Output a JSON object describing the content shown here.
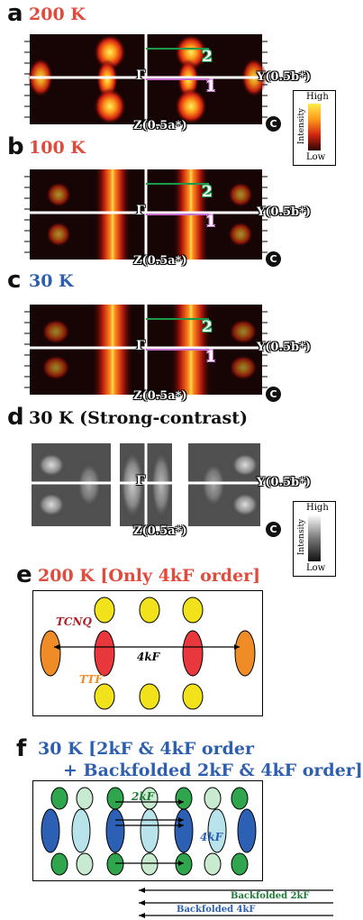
{
  "panels": [
    {
      "letter": "a",
      "title": "200 K",
      "color": "#e04b3c"
    },
    {
      "letter": "b",
      "title": "100 K",
      "color": "#e04b3c"
    },
    {
      "letter": "c",
      "title": "30 K",
      "color": "#2e5fae"
    },
    {
      "letter": "d",
      "title": "30 K (Strong-contrast)",
      "color": "#111111"
    },
    {
      "letter": "e",
      "title": "200 K [Only 4kF order]",
      "color": "#e04b3c"
    },
    {
      "letter": "f",
      "title": "30 K [2kF & 4kF order",
      "title2": "+ Backfolded 2kF & 4kF order]",
      "color": "#2e5fae"
    }
  ],
  "axis": {
    "gamma": "Γ",
    "y": "Y(0.5b*)",
    "z": "Z(0.5a*)",
    "corner": "C",
    "cut1": "1",
    "cut2": "2"
  },
  "colorbar": {
    "high": "High",
    "low": "Low",
    "label": "Intensity"
  },
  "diagram_e": {
    "tcnq": "TCNQ",
    "ttf": "TTF",
    "vec": "4kF"
  },
  "diagram_f": {
    "v2": "2kF",
    "v4": "4kF",
    "bf2": "Backfolded 2kF",
    "bf4": "Backfolded 4kF"
  },
  "colors": {
    "tcnq": "#e8383d",
    "ttf": "#f2e21c",
    "end": "#f08c28",
    "blue": "#2c60b4",
    "green": "#2fa64e",
    "lightcyan": "#b9e3ea",
    "lightgreen": "#c8ebcf",
    "cut2": "#1a9a4a",
    "cut1": "#c86fd0"
  }
}
